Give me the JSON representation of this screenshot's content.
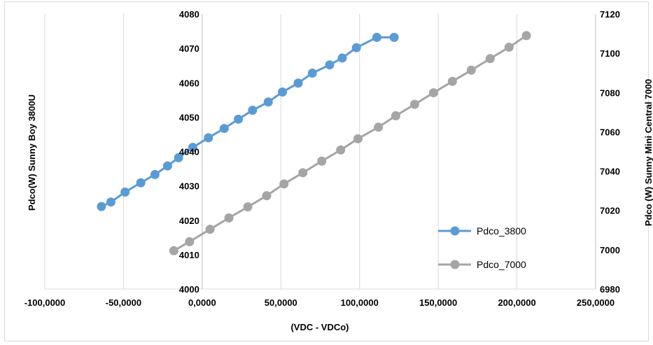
{
  "chart_data": {
    "type": "scatter",
    "xlabel": "(VDC - VDCo)",
    "ylabel_left": "Pdco(W) Sunny Boy 3800U",
    "ylabel_right": "Pdco (W) Sunny Mini Central 7000",
    "xlim": [
      -100,
      250
    ],
    "ylim_left": [
      4000,
      4080
    ],
    "ylim_right": [
      6980,
      7120
    ],
    "x_ticks": [
      "-100,0000",
      "-50,0000",
      "0,0000",
      "50,0000",
      "100,0000",
      "150,0000",
      "200,0000",
      "250,0000"
    ],
    "y_left_ticks": [
      "4000",
      "4010",
      "4020",
      "4030",
      "4040",
      "4050",
      "4060",
      "4070",
      "4080"
    ],
    "y_right_ticks": [
      "6980",
      "7000",
      "7020",
      "7040",
      "7060",
      "7080",
      "7100",
      "7120"
    ],
    "grid": "vertical",
    "legend_position": "bottom-right",
    "series": [
      {
        "name": "Pdco_3800",
        "axis": "left",
        "color": "#5b9bd5",
        "x": [
          -64,
          -58,
          -49,
          -39,
          -30,
          -22,
          -15,
          -6,
          4,
          14,
          23,
          32,
          42,
          51,
          61,
          70,
          81,
          89,
          98,
          111,
          122
        ],
        "y": [
          4024,
          4025.3,
          4028.2,
          4030.9,
          4033.3,
          4035.8,
          4038.2,
          4041.2,
          4044,
          4046.7,
          4049.4,
          4052,
          4054.4,
          4057.3,
          4059.9,
          4062.8,
          4065.2,
          4067.2,
          4070.2,
          4073.2,
          4073.2
        ]
      },
      {
        "name": "Pdco_7000",
        "axis": "right",
        "color": "#a5a5a5",
        "x": [
          -18,
          -8,
          5,
          17,
          29,
          41,
          52,
          64,
          76,
          88,
          99,
          112,
          123,
          135,
          147,
          159,
          171,
          183,
          195,
          206
        ],
        "y": [
          6999.5,
          7004.1,
          7010.4,
          7016.2,
          7021.8,
          7027.5,
          7033.5,
          7039.2,
          7045.1,
          7050.8,
          7056.5,
          7062.4,
          7068.2,
          7074,
          7079.9,
          7085.7,
          7091.4,
          7097.3,
          7103.1,
          7109
        ]
      }
    ]
  }
}
